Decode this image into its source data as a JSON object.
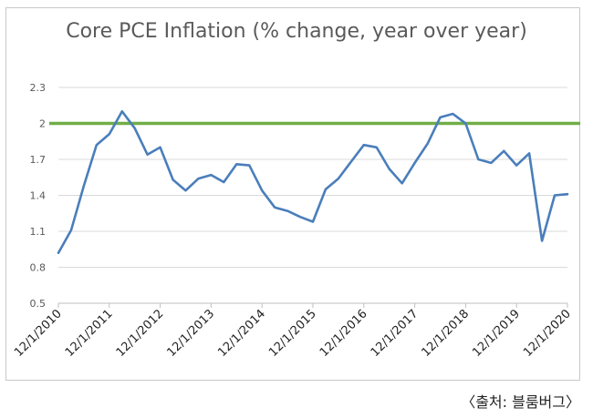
{
  "source_note": "〈출처: 블룸버그〉",
  "chart_data": {
    "type": "line",
    "title": "Core PCE Inflation (% change, year over year)",
    "xlabel": "",
    "ylabel": "",
    "ylim": [
      0.5,
      2.3
    ],
    "y_ticks": [
      "0.5",
      "0.8",
      "1.1",
      "1.4",
      "1.7",
      "2",
      "2.3"
    ],
    "x_ticks": [
      "12/1/2010",
      "12/1/2011",
      "12/1/2012",
      "12/1/2013",
      "12/1/2014",
      "12/1/2015",
      "12/1/2016",
      "12/1/2017",
      "12/1/2018",
      "12/1/2019",
      "12/1/2020"
    ],
    "grid": "horizontal",
    "series": [
      {
        "color": "#4a7ebb",
        "x": [
          "2010-12",
          "2011-03",
          "2011-06",
          "2011-09",
          "2011-12",
          "2012-03",
          "2012-06",
          "2012-09",
          "2012-12",
          "2013-03",
          "2013-06",
          "2013-09",
          "2013-12",
          "2014-03",
          "2014-06",
          "2014-09",
          "2014-12",
          "2015-03",
          "2015-06",
          "2015-09",
          "2015-12",
          "2016-03",
          "2016-06",
          "2016-09",
          "2016-12",
          "2017-03",
          "2017-06",
          "2017-09",
          "2017-12",
          "2018-03",
          "2018-06",
          "2018-09",
          "2018-12",
          "2019-03",
          "2019-06",
          "2019-09",
          "2019-12",
          "2020-03",
          "2020-06",
          "2020-09",
          "2020-12"
        ],
        "values": [
          0.92,
          1.11,
          1.48,
          1.82,
          1.91,
          2.1,
          1.96,
          1.74,
          1.8,
          1.53,
          1.44,
          1.54,
          1.57,
          1.51,
          1.66,
          1.65,
          1.44,
          1.3,
          1.27,
          1.22,
          1.18,
          1.45,
          1.54,
          1.68,
          1.82,
          1.8,
          1.62,
          1.5,
          1.67,
          1.83,
          2.05,
          2.08,
          2.0,
          1.7,
          1.67,
          1.77,
          1.65,
          1.75,
          1.02,
          1.4,
          1.41
        ]
      }
    ],
    "reference_line": {
      "value": 2,
      "color": "#70ad47"
    }
  }
}
